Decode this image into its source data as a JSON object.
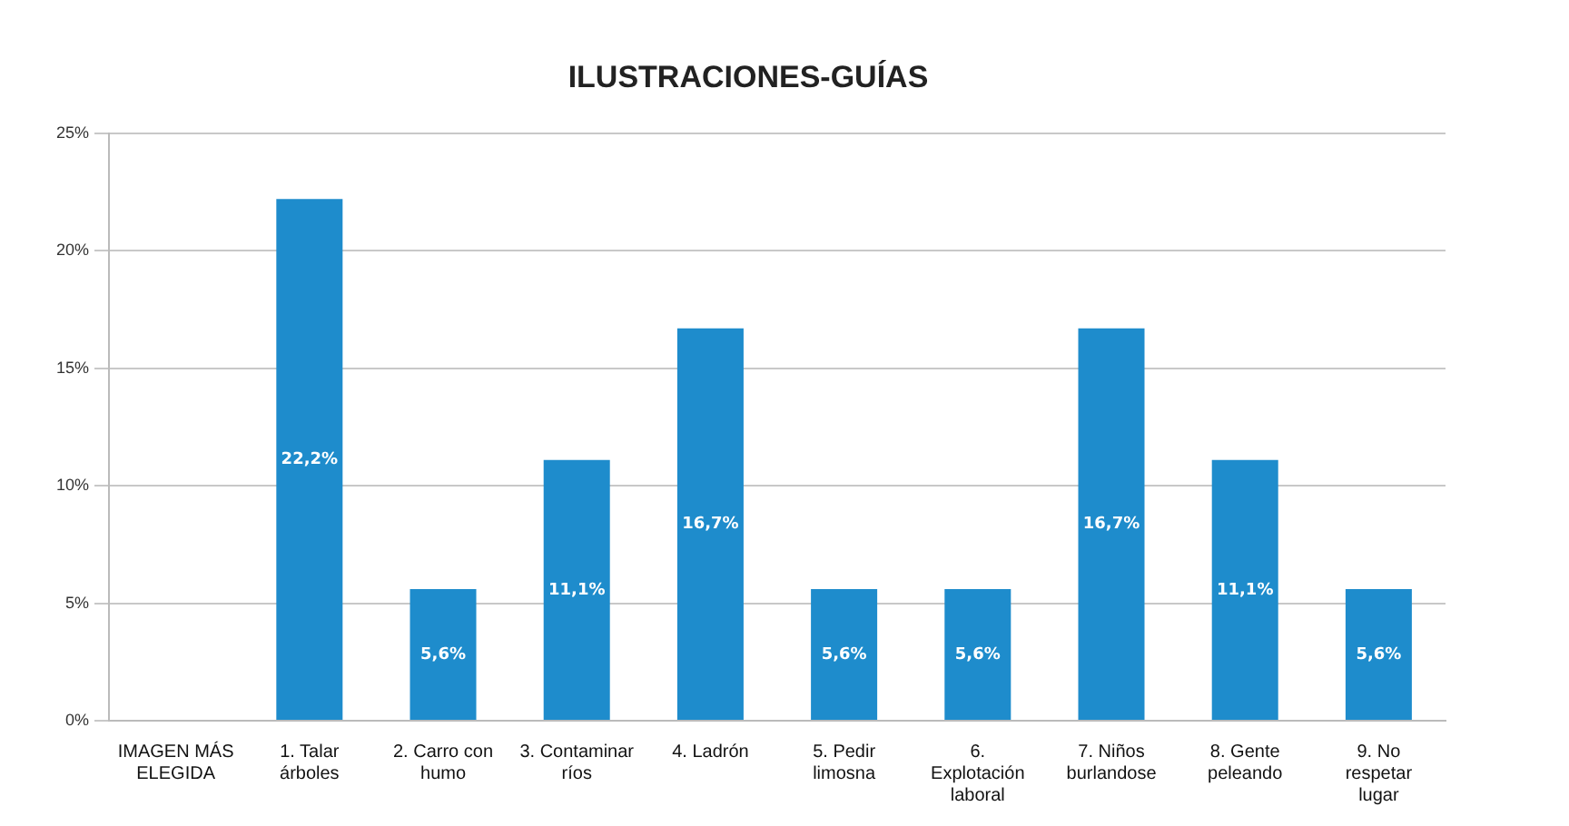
{
  "chart_data": {
    "type": "bar",
    "title": "ILUSTRACIONES-GUÍAS",
    "categories": [
      "IMAGEN MÁS ELEGIDA",
      "1. Talar árboles",
      "2. Carro con humo",
      "3. Contaminar ríos",
      "4. Ladrón",
      "5. Pedir limosna",
      "6. Explotación laboral",
      "7. Niños burlandose",
      "8. Gente peleando",
      "9. No respetar lugar"
    ],
    "values": [
      null,
      22.2,
      5.6,
      11.1,
      16.7,
      5.6,
      5.6,
      16.7,
      11.1,
      5.6
    ],
    "value_labels": [
      null,
      "22,2%",
      "5,6%",
      "11,1%",
      "16,7%",
      "5,6%",
      "5,6%",
      "16,7%",
      "11,1%",
      "5,6%"
    ],
    "color": "#1e8ccc",
    "ylim": [
      0,
      25
    ],
    "yticks": [
      {
        "value": 0,
        "label": "0%"
      },
      {
        "value": 5,
        "label": "5%"
      },
      {
        "value": 10,
        "label": "10%"
      },
      {
        "value": 15,
        "label": "15%"
      },
      {
        "value": 20,
        "label": "20%"
      },
      {
        "value": 25,
        "label": "25%"
      }
    ],
    "grid": "y",
    "legend": false
  }
}
